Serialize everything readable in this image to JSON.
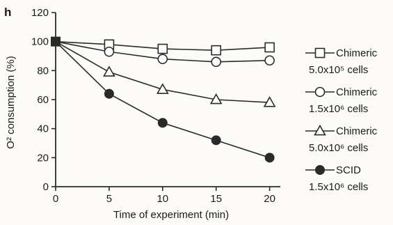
{
  "chart_data": {
    "type": "line",
    "panel_label": "h",
    "xlabel": "Time of experiment (min)",
    "ylabel": "O² consumption (%)",
    "x": [
      0,
      5,
      10,
      15,
      20
    ],
    "xlim": [
      0,
      21
    ],
    "ylim": [
      0,
      120
    ],
    "xticks": [
      "0",
      "5",
      "10",
      "15",
      "20"
    ],
    "yticks": [
      "0",
      "20",
      "40",
      "60",
      "80",
      "100",
      "120"
    ],
    "grid": false,
    "legend_position": "right",
    "series": [
      {
        "name": "Chimeric",
        "name_line2": "5.0x10⁵ cells",
        "marker": "open-square",
        "values": [
          100,
          98,
          95,
          94,
          96
        ]
      },
      {
        "name": "Chimeric",
        "name_line2": "1.5x10⁶ cells",
        "marker": "open-circle",
        "values": [
          100,
          93,
          88,
          86,
          87
        ]
      },
      {
        "name": "Chimeric",
        "name_line2": "5.0x10⁶ cells",
        "marker": "open-triangle",
        "values": [
          100,
          79,
          67,
          60,
          58
        ]
      },
      {
        "name": "SCID",
        "name_line2": "1.5x10⁶ cells",
        "marker": "filled-circle",
        "values": [
          100,
          64,
          44,
          32,
          20
        ]
      }
    ]
  }
}
